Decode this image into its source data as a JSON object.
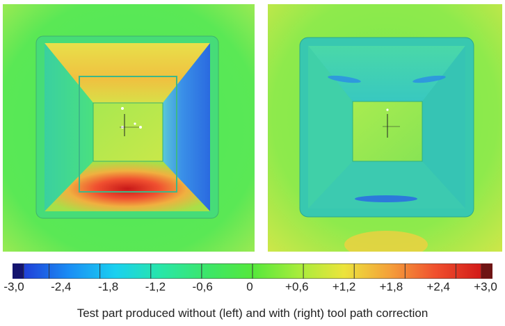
{
  "images": {
    "left": {
      "description_label": "without tool path correction"
    },
    "right": {
      "description_label": "with tool path correction"
    }
  },
  "colorbar": {
    "ticks": [
      "-3,0",
      "-2,4",
      "-1,8",
      "-1,2",
      "-0,6",
      "0",
      "+0,6",
      "+1,2",
      "+1,8",
      "+2,4",
      "+3,0"
    ],
    "colors": [
      "#14146e",
      "#1f3fd8",
      "#1a8ef5",
      "#19d0f0",
      "#28e6a8",
      "#3ce66a",
      "#55e83c",
      "#a6ec3c",
      "#ece43c",
      "#f4a03a",
      "#f0502e",
      "#d21a18",
      "#6e1414"
    ]
  },
  "caption": "Test part produced without (left) and with (right) tool path correction"
}
